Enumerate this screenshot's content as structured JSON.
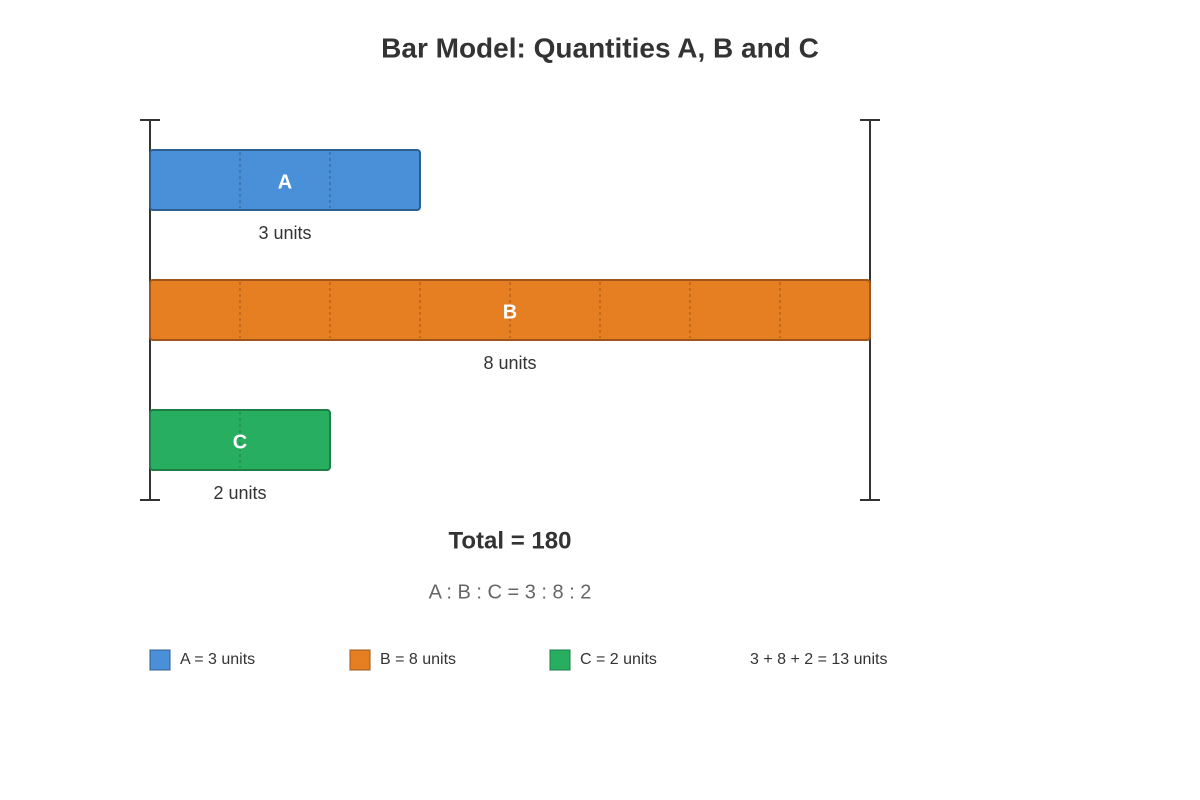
{
  "title": "Bar Model: Quantities A, B and C",
  "bars": [
    {
      "label": "A",
      "units": 3,
      "unit_label": "3 units",
      "color": "#4a90d9",
      "stroke": "#2c5f8f"
    },
    {
      "label": "B",
      "units": 8,
      "unit_label": "8 units",
      "color": "#e67e22",
      "stroke": "#a0561a"
    },
    {
      "label": "C",
      "units": 2,
      "unit_label": "2 units",
      "color": "#27ae60",
      "stroke": "#1e7e45"
    }
  ],
  "total": "Total = 180",
  "ratio": "A : B : C = 3 : 8 : 2",
  "legend": [
    "A = 3 units",
    "B = 8 units",
    "C = 2 units"
  ],
  "sum": "3 + 8 + 2 = 13 units"
}
